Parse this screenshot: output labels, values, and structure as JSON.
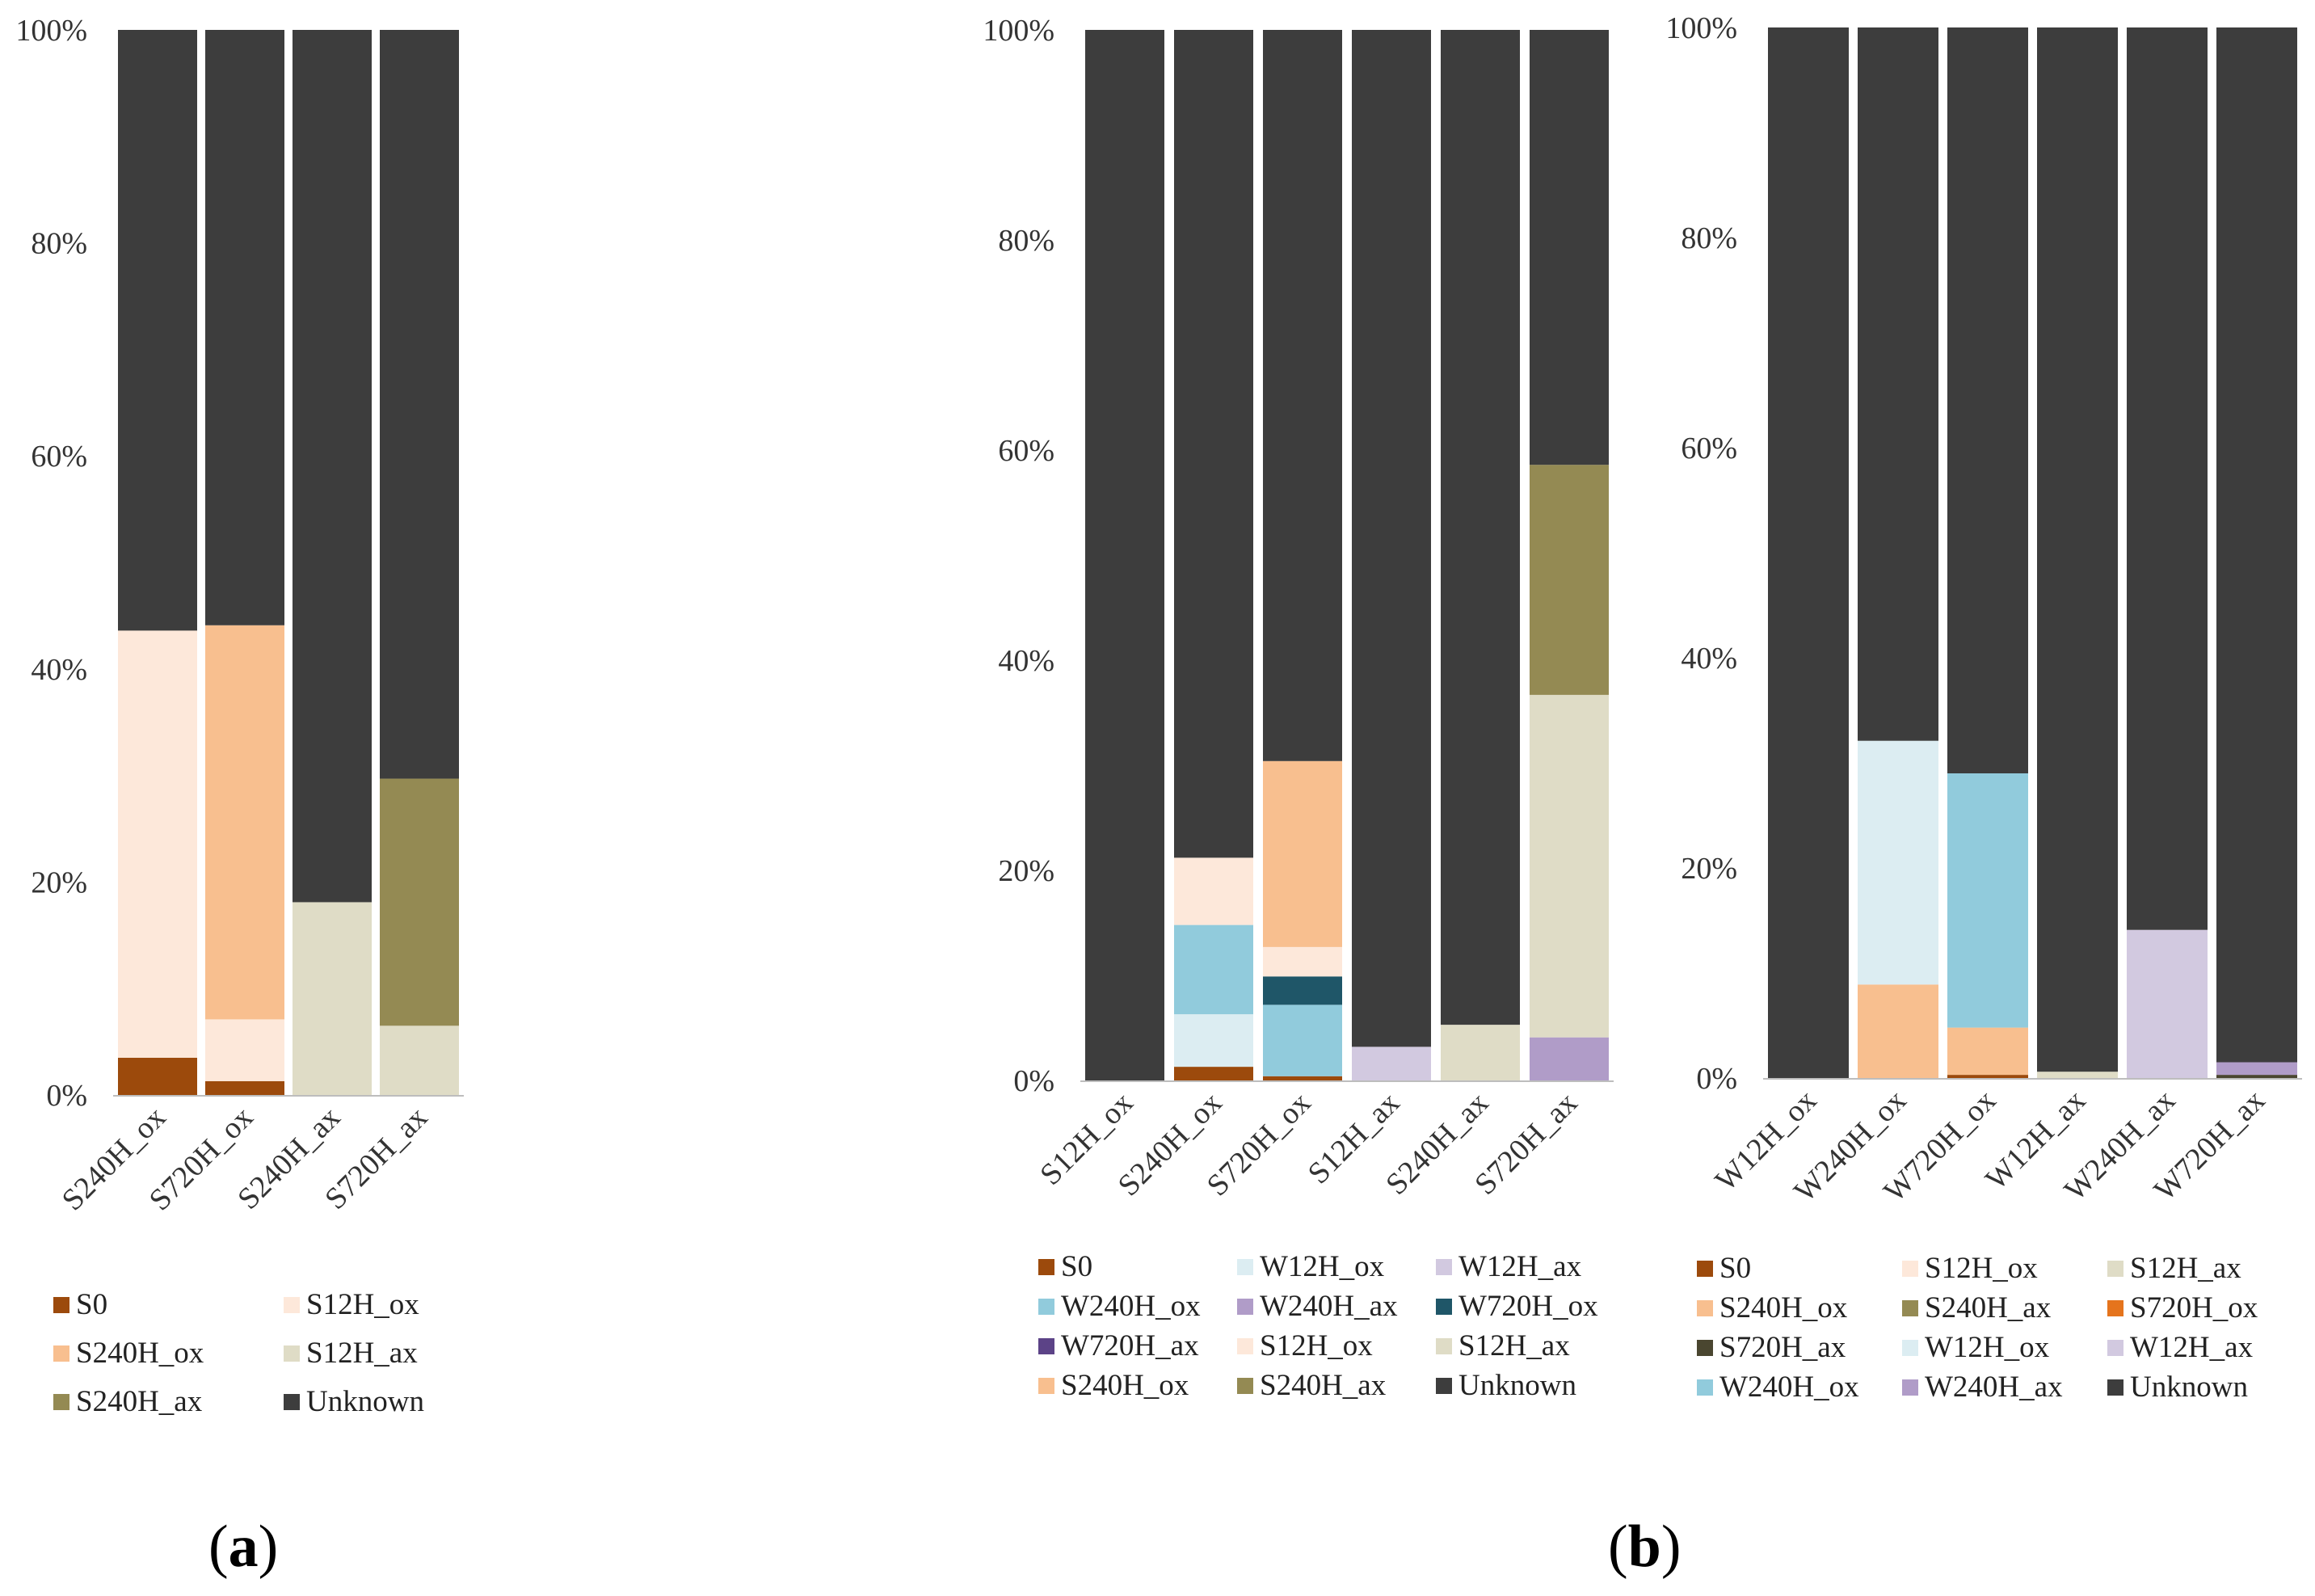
{
  "colors": {
    "S0": "#9c4a0c",
    "S12H_ox": "#fde8da",
    "S240H_ox": "#f8bf8f",
    "S720H_ox": "#e5741d",
    "S12H_ax": "#dfdcc6",
    "S240H_ax": "#948a53",
    "S720H_ax": "#4a4630",
    "W12H_ox": "#dcedf2",
    "W240H_ox": "#91cbdc",
    "W720H_ox": "#1f5668",
    "W12H_ax": "#d2c9e0",
    "W240H_ax": "#b09cc8",
    "W720H_ax": "#5c4387",
    "Unknown": "#3d3d3d"
  },
  "panel_labels": {
    "a": {
      "open": "(",
      "letter": "a",
      "close": ")"
    },
    "b": {
      "open": "(",
      "letter": "b",
      "close": ")"
    }
  },
  "chart_data": [
    {
      "type": "bar",
      "stacked": true,
      "panel": "a",
      "categories": [
        "S240H_ox",
        "S720H_ox",
        "S240H_ax",
        "S720H_ax"
      ],
      "yticks": [
        "0%",
        "20%",
        "40%",
        "60%",
        "80%",
        "100%"
      ],
      "ylim": [
        0,
        100
      ],
      "series": [
        {
          "name": "S0",
          "values": [
            3.5,
            1.3,
            0,
            0
          ]
        },
        {
          "name": "S12H_ox",
          "values": [
            40.1,
            5.8,
            0,
            0
          ]
        },
        {
          "name": "S240H_ox",
          "values": [
            0,
            37.0,
            0,
            0
          ]
        },
        {
          "name": "S12H_ax",
          "values": [
            0,
            0,
            18.1,
            6.5
          ]
        },
        {
          "name": "S240H_ax",
          "values": [
            0,
            0,
            0,
            23.2
          ]
        },
        {
          "name": "Unknown",
          "values": [
            56.4,
            55.9,
            81.9,
            70.3
          ]
        }
      ],
      "legend": [
        "S0",
        "S12H_ox",
        "S240H_ox",
        "S12H_ax",
        "S240H_ax",
        "Unknown"
      ]
    },
    {
      "type": "bar",
      "stacked": true,
      "panel": "b-left",
      "categories": [
        "S12H_ox",
        "S240H_ox",
        "S720H_ox",
        "S12H_ax",
        "S240H_ax",
        "S720H_ax"
      ],
      "yticks": [
        "0%",
        "20%",
        "40%",
        "60%",
        "80%",
        "100%"
      ],
      "ylim": [
        0,
        100
      ],
      "series": [
        {
          "name": "S0",
          "values": [
            0,
            1.3,
            0.4,
            0,
            0,
            0
          ]
        },
        {
          "name": "W12H_ox",
          "values": [
            0,
            5.0,
            0,
            0,
            0,
            0
          ]
        },
        {
          "name": "W12H_ax",
          "values": [
            0,
            0,
            0,
            3.2,
            0,
            0
          ]
        },
        {
          "name": "W240H_ox",
          "values": [
            0,
            8.5,
            6.8,
            0,
            0,
            0
          ]
        },
        {
          "name": "W240H_ax",
          "values": [
            0,
            0,
            0,
            0,
            0,
            4.1
          ]
        },
        {
          "name": "W720H_ox",
          "values": [
            0,
            0,
            2.7,
            0,
            0,
            0
          ]
        },
        {
          "name": "W720H_ax",
          "values": [
            0,
            0,
            0,
            0,
            0,
            0
          ]
        },
        {
          "name": "S12H_ox",
          "values": [
            0,
            6.4,
            2.8,
            0,
            0,
            0
          ]
        },
        {
          "name": "S12H_ax",
          "values": [
            0,
            0,
            0,
            0,
            5.3,
            32.6
          ]
        },
        {
          "name": "S240H_ox",
          "values": [
            0,
            0,
            17.7,
            0,
            0,
            0
          ]
        },
        {
          "name": "S240H_ax",
          "values": [
            0,
            0,
            0,
            0,
            0,
            21.9
          ]
        },
        {
          "name": "Unknown",
          "values": [
            100,
            78.8,
            69.6,
            96.8,
            94.7,
            41.4
          ]
        }
      ],
      "legend": [
        "S0",
        "W12H_ox",
        "W12H_ax",
        "W240H_ox",
        "W240H_ax",
        "W720H_ox",
        "W720H_ax",
        "S12H_ox",
        "S12H_ax",
        "S240H_ox",
        "S240H_ax",
        "Unknown"
      ]
    },
    {
      "type": "bar",
      "stacked": true,
      "panel": "b-right",
      "categories": [
        "W12H_ox",
        "W240H_ox",
        "W720H_ox",
        "W12H_ax",
        "W240H_ax",
        "W720H_ax"
      ],
      "yticks": [
        "0%",
        "20%",
        "40%",
        "60%",
        "80%",
        "100%"
      ],
      "ylim": [
        0,
        100
      ],
      "series": [
        {
          "name": "S0",
          "values": [
            0,
            0,
            0.3,
            0,
            0,
            0
          ]
        },
        {
          "name": "S12H_ox",
          "values": [
            0,
            0,
            0,
            0,
            0,
            0
          ]
        },
        {
          "name": "S12H_ax",
          "values": [
            0,
            0,
            0,
            0.6,
            0,
            0
          ]
        },
        {
          "name": "S240H_ox",
          "values": [
            0,
            8.9,
            4.5,
            0,
            0,
            0
          ]
        },
        {
          "name": "S240H_ax",
          "values": [
            0,
            0,
            0,
            0,
            0,
            0
          ]
        },
        {
          "name": "S720H_ox",
          "values": [
            0,
            0,
            0,
            0,
            0,
            0
          ]
        },
        {
          "name": "S720H_ax",
          "values": [
            0,
            0,
            0,
            0,
            0,
            0.3
          ]
        },
        {
          "name": "W12H_ox",
          "values": [
            0,
            23.2,
            0,
            0,
            0,
            0
          ]
        },
        {
          "name": "W12H_ax",
          "values": [
            0,
            0,
            0,
            0,
            14.1,
            0
          ]
        },
        {
          "name": "W240H_ox",
          "values": [
            0,
            0,
            24.2,
            0,
            0,
            0
          ]
        },
        {
          "name": "W240H_ax",
          "values": [
            0,
            0,
            0,
            0,
            0,
            1.2
          ]
        },
        {
          "name": "Unknown",
          "values": [
            100,
            67.9,
            71.0,
            99.4,
            85.9,
            98.5
          ]
        }
      ],
      "legend": [
        "S0",
        "S12H_ox",
        "S12H_ax",
        "S240H_ox",
        "S240H_ax",
        "S720H_ox",
        "S720H_ax",
        "W12H_ox",
        "W12H_ax",
        "W240H_ox",
        "W240H_ax",
        "Unknown"
      ]
    }
  ]
}
